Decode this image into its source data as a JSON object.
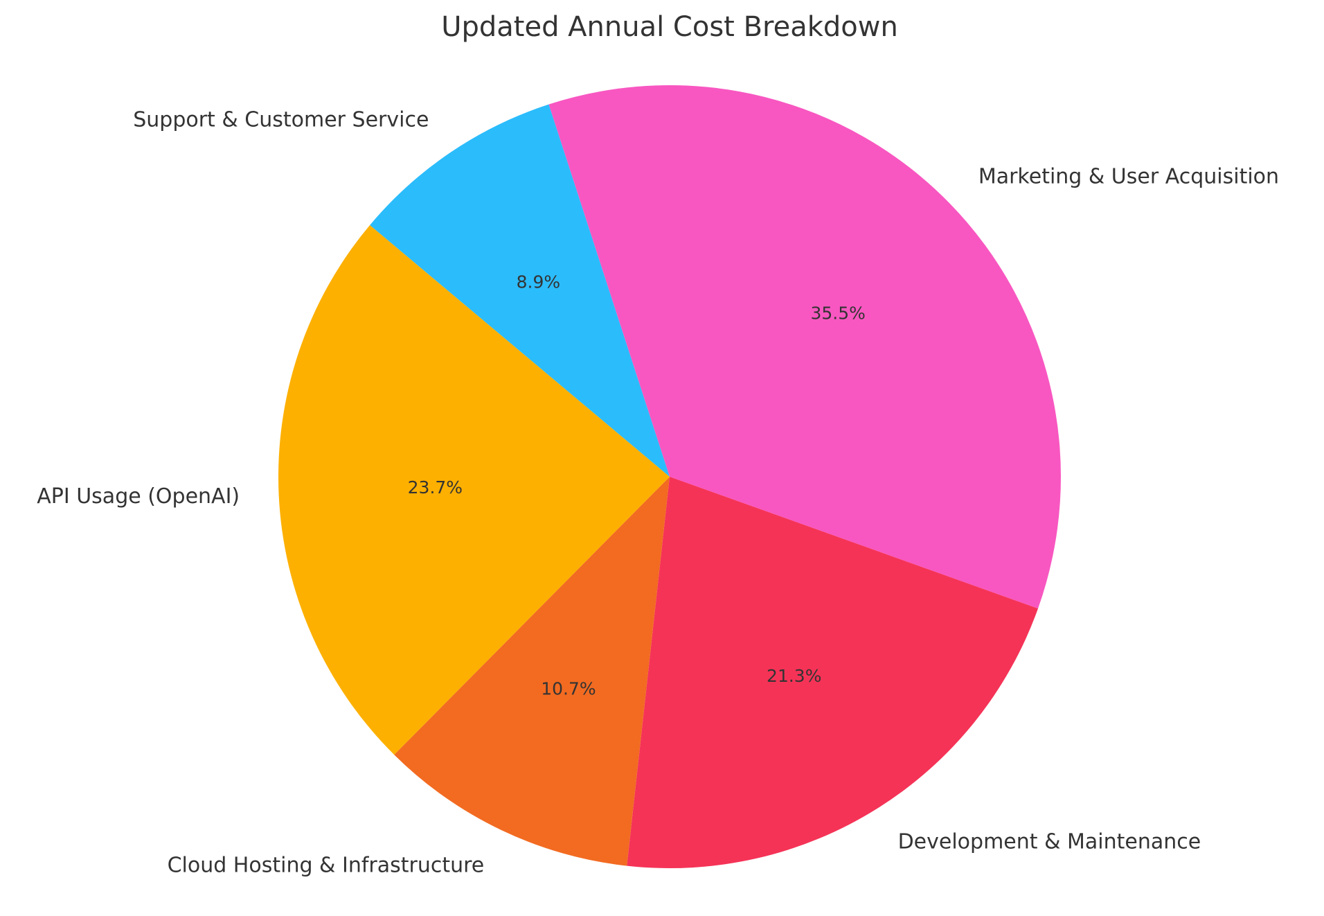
{
  "chart_data": {
    "type": "pie",
    "title": "Updated Annual Cost Breakdown",
    "categories": [
      "Marketing & User Acquisition",
      "Development & Maintenance",
      "Cloud Hosting & Infrastructure",
      "API Usage (OpenAI)",
      "Support & Customer Service"
    ],
    "values": [
      35.5,
      21.3,
      10.7,
      23.7,
      8.9
    ],
    "percent_labels": [
      "35.5%",
      "21.3%",
      "10.7%",
      "23.7%",
      "8.9%"
    ],
    "colors": [
      "#f857c1",
      "#f53357",
      "#f26b21",
      "#fdb000",
      "#2bbcfc"
    ],
    "start_angle_deg": 108,
    "direction": "clockwise",
    "legend": "none"
  }
}
